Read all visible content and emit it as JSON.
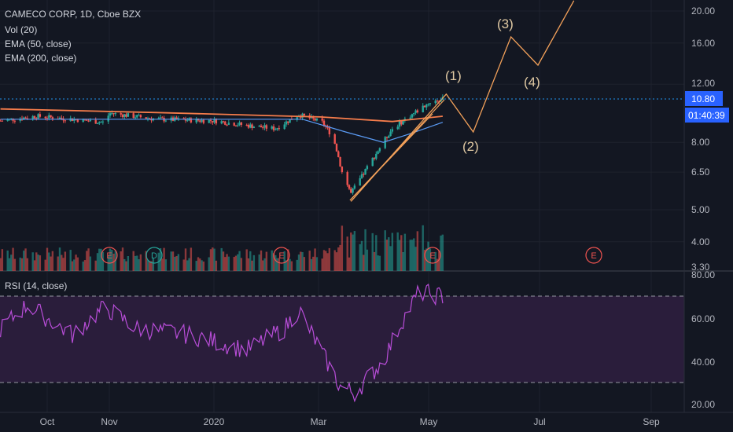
{
  "header": {
    "symbol_line": "CAMECO CORP, 1D, Cboe BZX",
    "indicators": [
      "Vol (20)",
      "EMA (50, close)",
      "EMA (200, close)"
    ]
  },
  "rsi_panel": {
    "label": "RSI (14, close)"
  },
  "price_axis": {
    "ticks": [
      "20.00",
      "16.00",
      "12.00",
      "10.80",
      "8.00",
      "6.50",
      "5.00",
      "4.00",
      "3.30"
    ],
    "current_price": "10.80",
    "countdown": "01:40:39"
  },
  "rsi_axis": {
    "ticks": [
      "80.00",
      "60.00",
      "40.00",
      "20.00"
    ]
  },
  "time_axis": {
    "labels": [
      "Oct",
      "Nov",
      "2020",
      "Mar",
      "May",
      "Jul",
      "Sep"
    ]
  },
  "wave_labels": [
    "(1)",
    "(2)",
    "(3)",
    "(4)"
  ],
  "event_markers": [
    "E",
    "D",
    "E",
    "E",
    "E"
  ],
  "colors": {
    "background": "#131722",
    "up": "#26a69a",
    "down": "#ef5350",
    "ema50": "#5b9cf6",
    "ema200": "#f57c4b",
    "wave": "#f3a15a",
    "rsi": "#b84dd8",
    "price_tag": "#2962ff"
  },
  "chart_data": {
    "type": "candlestick",
    "y_scale": "log",
    "price_range": [
      3.3,
      21
    ],
    "current_price": 10.8,
    "price_path": [
      {
        "date": "2019-09-05",
        "price": 9.3
      },
      {
        "date": "2019-09-25",
        "price": 9.6
      },
      {
        "date": "2019-10-15",
        "price": 9.4
      },
      {
        "date": "2019-11-01",
        "price": 9.2
      },
      {
        "date": "2019-11-05",
        "price": 9.8
      },
      {
        "date": "2019-12-01",
        "price": 9.4
      },
      {
        "date": "2020-01-02",
        "price": 9.3
      },
      {
        "date": "2020-01-20",
        "price": 9.0
      },
      {
        "date": "2020-02-05",
        "price": 8.8
      },
      {
        "date": "2020-02-18",
        "price": 9.7
      },
      {
        "date": "2020-03-02",
        "price": 9.2
      },
      {
        "date": "2020-03-08",
        "price": 8.3
      },
      {
        "date": "2020-03-13",
        "price": 6.5
      },
      {
        "date": "2020-03-18",
        "price": 5.6
      },
      {
        "date": "2020-03-24",
        "price": 6.3
      },
      {
        "date": "2020-04-01",
        "price": 7.4
      },
      {
        "date": "2020-04-10",
        "price": 8.8
      },
      {
        "date": "2020-04-22",
        "price": 9.8
      },
      {
        "date": "2020-05-01",
        "price": 10.6
      },
      {
        "date": "2020-05-08",
        "price": 10.8
      }
    ],
    "ema_50": [
      {
        "date": "2019-09-05",
        "price": 9.4
      },
      {
        "date": "2020-02-20",
        "price": 9.4
      },
      {
        "date": "2020-03-15",
        "price": 8.6
      },
      {
        "date": "2020-04-05",
        "price": 8.0
      },
      {
        "date": "2020-04-20",
        "price": 8.5
      },
      {
        "date": "2020-05-08",
        "price": 9.2
      }
    ],
    "ema_200": [
      {
        "date": "2019-09-05",
        "price": 10.1
      },
      {
        "date": "2019-12-01",
        "price": 9.85
      },
      {
        "date": "2020-03-01",
        "price": 9.55
      },
      {
        "date": "2020-04-10",
        "price": 9.25
      },
      {
        "date": "2020-05-08",
        "price": 9.6
      }
    ],
    "elliott_projection": [
      {
        "label": "",
        "date": "2020-03-18",
        "price": 5.3
      },
      {
        "label": "(1)",
        "date": "2020-05-10",
        "price": 11.2
      },
      {
        "label": "(2)",
        "date": "2020-05-25",
        "price": 8.6
      },
      {
        "label": "(3)",
        "date": "2020-06-15",
        "price": 16.7
      },
      {
        "label": "(4)",
        "date": "2020-06-30",
        "price": 13.7
      },
      {
        "label": "",
        "date": "2020-07-20",
        "price": 21.5
      }
    ],
    "rsi": {
      "range": [
        20,
        80
      ],
      "levels": [
        70,
        30
      ],
      "values": [
        {
          "date": "2019-09-05",
          "value": 55
        },
        {
          "date": "2019-09-20",
          "value": 66
        },
        {
          "date": "2019-10-15",
          "value": 52
        },
        {
          "date": "2019-11-02",
          "value": 65
        },
        {
          "date": "2019-11-20",
          "value": 55
        },
        {
          "date": "2019-12-20",
          "value": 52
        },
        {
          "date": "2020-01-20",
          "value": 45
        },
        {
          "date": "2020-02-10",
          "value": 55
        },
        {
          "date": "2020-02-18",
          "value": 64
        },
        {
          "date": "2020-03-01",
          "value": 45
        },
        {
          "date": "2020-03-12",
          "value": 28
        },
        {
          "date": "2020-03-20",
          "value": 25
        },
        {
          "date": "2020-04-05",
          "value": 40
        },
        {
          "date": "2020-04-15",
          "value": 58
        },
        {
          "date": "2020-04-25",
          "value": 72
        },
        {
          "date": "2020-05-08",
          "value": 70
        }
      ]
    }
  }
}
